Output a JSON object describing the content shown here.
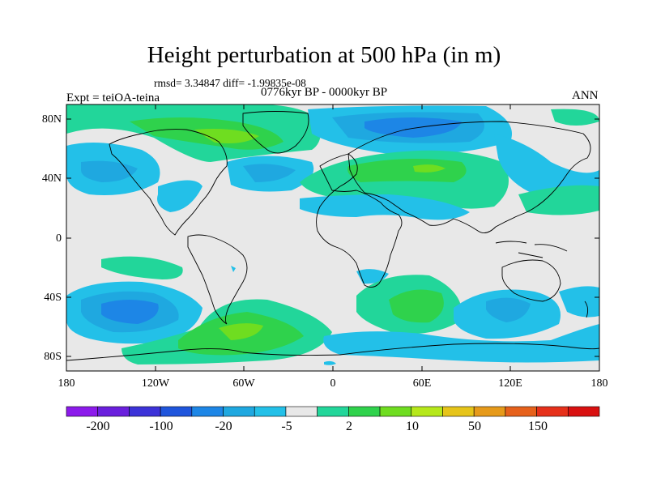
{
  "figure": {
    "title": "Height perturbation at 500 hPa (in m)",
    "stats": "rmsd= 3.34847 diff= -1.99835e-08",
    "period": "0776kyr BP - 0000kyr BP",
    "experiment": "Expt = teiOA-teina",
    "season": "ANN"
  },
  "axes": {
    "lat_labels": [
      "80N",
      "40N",
      "0",
      "40S",
      "80S"
    ],
    "lon_labels": [
      "180",
      "120W",
      "60W",
      "0",
      "60E",
      "120E",
      "180"
    ]
  },
  "colorbar": {
    "labels": [
      "-200",
      "-100",
      "-20",
      "-5",
      "2",
      "10",
      "50",
      "150"
    ],
    "colors": [
      "#8c1aeb",
      "#6a1fdd",
      "#3c32d8",
      "#1f55dc",
      "#1d86e6",
      "#1fa8e0",
      "#23c0e8",
      "#e8e8e8",
      "#22d69a",
      "#2fd24c",
      "#6fdd20",
      "#b6e81a",
      "#e6c419",
      "#e69a1a",
      "#e6611b",
      "#e6301a",
      "#d91010"
    ]
  },
  "map": {
    "background_color": "#e8e8e8",
    "coastline_color": "#000000"
  }
}
